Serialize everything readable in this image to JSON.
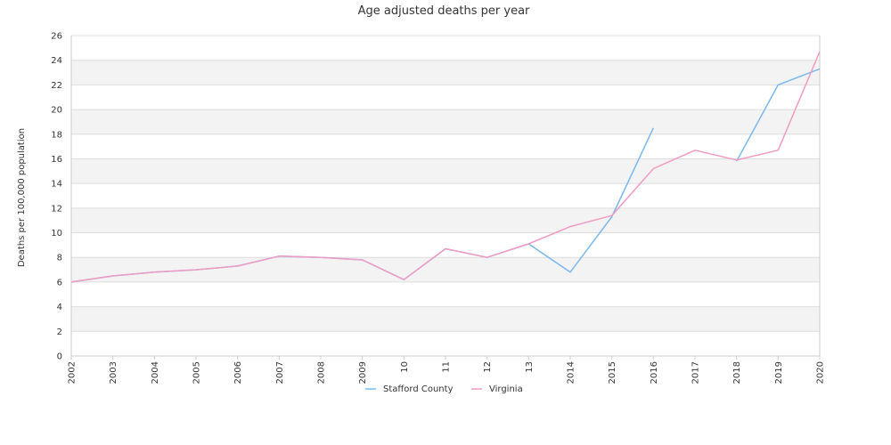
{
  "chart_data": {
    "type": "line",
    "title": "Age adjusted deaths per year",
    "xlabel": "",
    "ylabel": "Deaths per 100,000 population",
    "x": [
      "2002",
      "2003",
      "2004",
      "2005",
      "2006",
      "2007",
      "2008",
      "2009",
      "2010",
      "2011",
      "2012",
      "2013",
      "2014",
      "2015",
      "2016",
      "2017",
      "2018",
      "2019",
      "2020"
    ],
    "x_tick_labels": [
      "2002",
      "2003",
      "2004",
      "2005",
      "2006",
      "2007",
      "2008",
      "2009",
      "10",
      "11",
      "12",
      "13",
      "2014",
      "2015",
      "2016",
      "2017",
      "2018",
      "2019",
      "2020"
    ],
    "ylim": [
      0,
      26
    ],
    "y_ticks": [
      0,
      2,
      4,
      6,
      8,
      10,
      12,
      14,
      16,
      18,
      20,
      22,
      24,
      26
    ],
    "grid": "horizontal bands",
    "legend_position": "bottom",
    "series": [
      {
        "name": "Stafford County",
        "color": "#7ab8ee",
        "values": [
          6.0,
          6.5,
          6.8,
          7.0,
          7.3,
          8.1,
          8.0,
          7.8,
          6.2,
          8.7,
          8.0,
          9.1,
          6.8,
          11.3,
          18.5,
          null,
          15.8,
          22.0,
          23.3
        ]
      },
      {
        "name": "Virginia",
        "color": "#f09ac4",
        "values": [
          6.0,
          6.5,
          6.8,
          7.0,
          7.3,
          8.1,
          8.0,
          7.8,
          6.2,
          8.7,
          8.0,
          9.1,
          10.5,
          11.4,
          15.2,
          16.7,
          15.9,
          16.7,
          24.7
        ]
      }
    ],
    "band_color": "#f3f3f3",
    "gridline_color": "#dddddd"
  }
}
